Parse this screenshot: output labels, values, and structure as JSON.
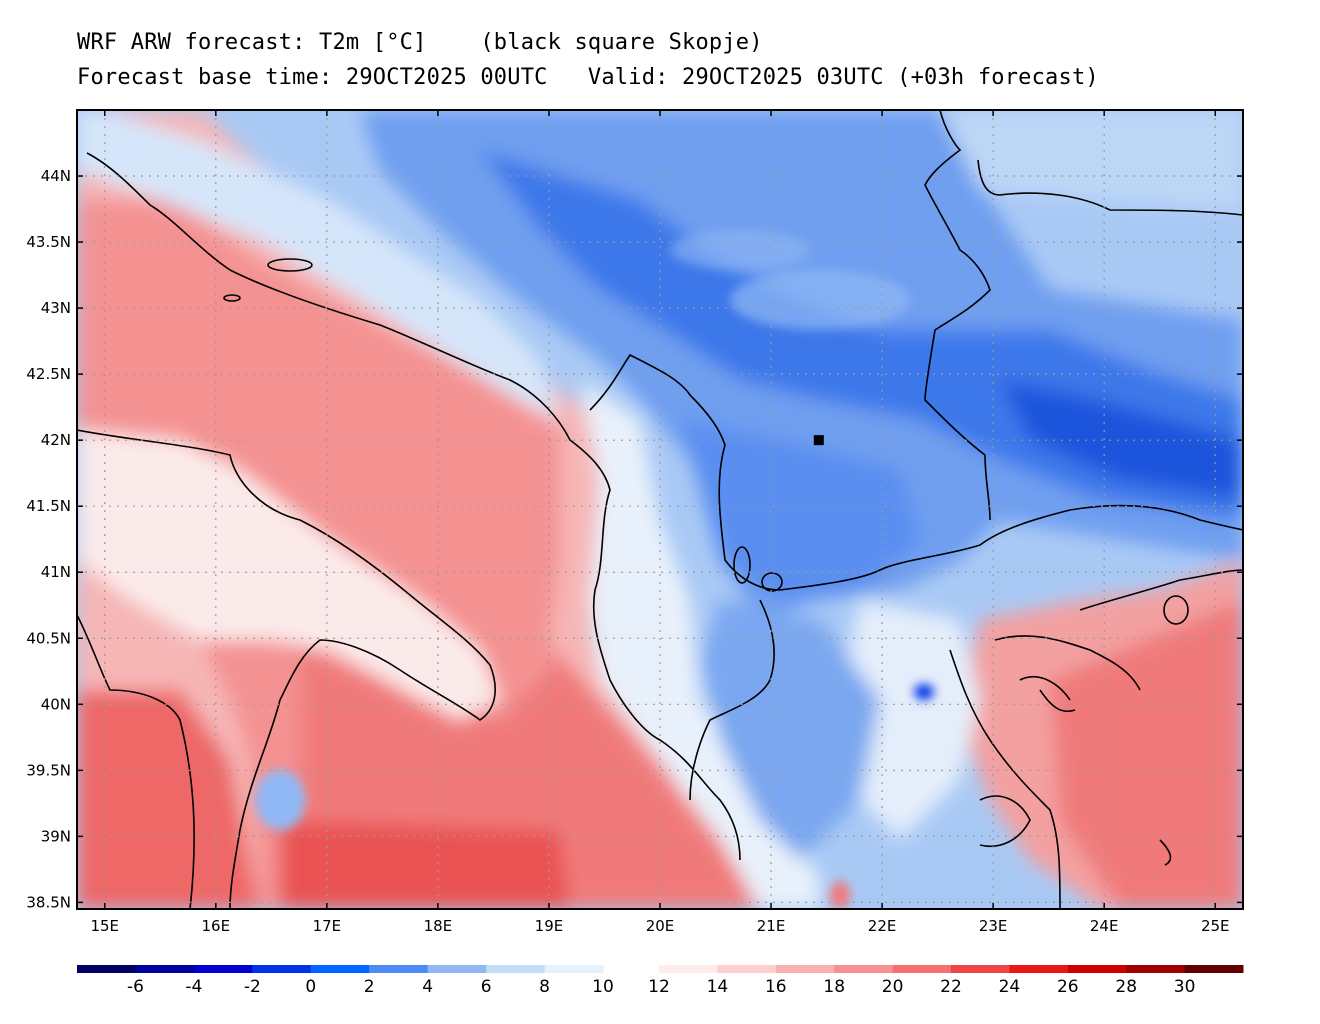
{
  "title_line1": "WRF ARW forecast: T2m [°C]    (black square Skopje)",
  "title_line2": "Forecast base time: 29OCT2025 00UTC   Valid: 29OCT2025 03UTC (+03h forecast)",
  "map": {
    "lon_range": [
      14.75,
      25.25
    ],
    "lat_range": [
      38.45,
      44.5
    ],
    "lon_ticks": [
      {
        "value": 15,
        "label": "15E"
      },
      {
        "value": 16,
        "label": "16E"
      },
      {
        "value": 17,
        "label": "17E"
      },
      {
        "value": 18,
        "label": "18E"
      },
      {
        "value": 19,
        "label": "19E"
      },
      {
        "value": 20,
        "label": "20E"
      },
      {
        "value": 21,
        "label": "21E"
      },
      {
        "value": 22,
        "label": "22E"
      },
      {
        "value": 23,
        "label": "23E"
      },
      {
        "value": 24,
        "label": "24E"
      },
      {
        "value": 25,
        "label": "25E"
      }
    ],
    "lat_ticks": [
      {
        "value": 44,
        "label": "44N"
      },
      {
        "value": 43.5,
        "label": "43.5N"
      },
      {
        "value": 43,
        "label": "43N"
      },
      {
        "value": 42.5,
        "label": "42.5N"
      },
      {
        "value": 42,
        "label": "42N"
      },
      {
        "value": 41.5,
        "label": "41.5N"
      },
      {
        "value": 41,
        "label": "41N"
      },
      {
        "value": 40.5,
        "label": "40.5N"
      },
      {
        "value": 40,
        "label": "40N"
      },
      {
        "value": 39.5,
        "label": "39.5N"
      },
      {
        "value": 39,
        "label": "39N"
      },
      {
        "value": 38.5,
        "label": "38.5N"
      }
    ],
    "grid": true,
    "marker": {
      "name": "Skopje",
      "lon": 21.43,
      "lat": 42.0,
      "color": "#000000"
    }
  },
  "colorbar": {
    "colors": [
      "#000060",
      "#0000a0",
      "#0000d0",
      "#0033e6",
      "#0066ff",
      "#4d8cf5",
      "#8fb8f5",
      "#c4dcf8",
      "#e6f1fc",
      "#ffecec",
      "#fdd0d0",
      "#f9b0b0",
      "#f79090",
      "#f57070",
      "#f04545",
      "#e81818",
      "#d00000",
      "#a00000",
      "#600000"
    ],
    "labels": [
      "-6",
      "-4",
      "-2",
      "0",
      "2",
      "4",
      "6",
      "8",
      "10",
      "12",
      "14",
      "16",
      "18",
      "20",
      "22",
      "24",
      "26",
      "28",
      "30"
    ]
  }
}
